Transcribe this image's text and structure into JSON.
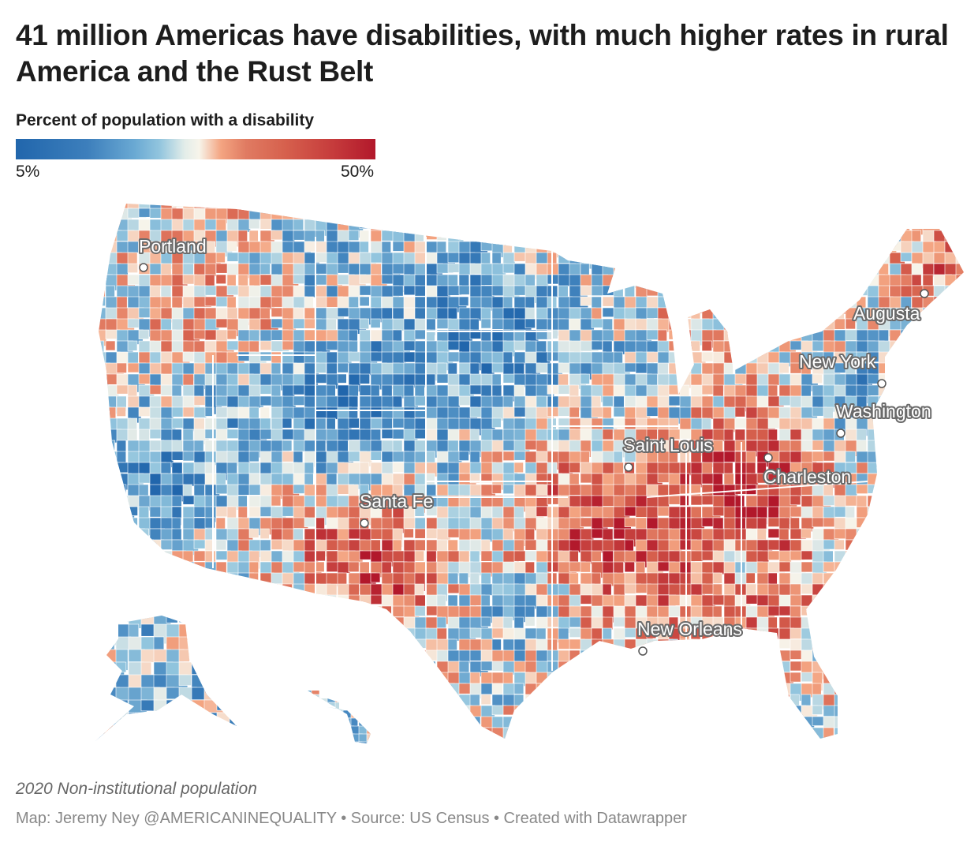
{
  "title": "41 million Americas have disabilities, with much higher rates in rural America and the Rust Belt",
  "legend": {
    "title": "Percent of population with a disability",
    "min_label": "5%",
    "max_label": "50%",
    "min_value": 5,
    "max_value": 50,
    "colors": [
      "#2166ac",
      "#92c5de",
      "#f7f4ea",
      "#f4a582",
      "#d6604d",
      "#b2182b"
    ]
  },
  "cities": [
    {
      "name": "Portland"
    },
    {
      "name": "Augusta"
    },
    {
      "name": "New York"
    },
    {
      "name": "Washington"
    },
    {
      "name": "Saint Louis"
    },
    {
      "name": "Charleston"
    },
    {
      "name": "Santa Fe"
    },
    {
      "name": "New Orleans"
    }
  ],
  "notes": "2020 Non-institutional population",
  "source": "Map: Jeremy Ney @AMERICANINEQUALITY • Source: US Census • Created with Datawrapper"
}
